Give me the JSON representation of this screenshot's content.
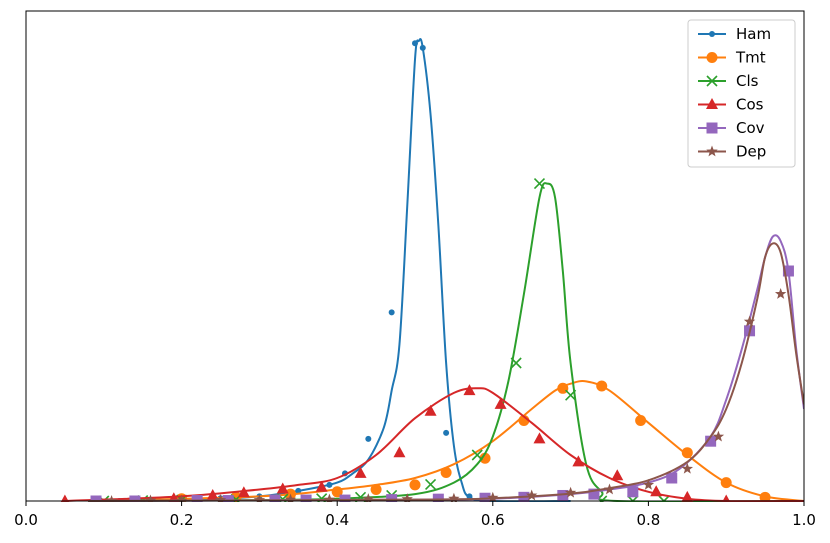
{
  "chart_data": {
    "type": "line",
    "title": "",
    "xlabel": "",
    "ylabel": "",
    "xlim": [
      0.0,
      1.0
    ],
    "ylim": [
      0.0,
      1.0
    ],
    "grid": false,
    "legend_position": "top-right",
    "x_ticks": [
      {
        "value": 0.0,
        "label": "0.0"
      },
      {
        "value": 0.2,
        "label": "0.2"
      },
      {
        "value": 0.4,
        "label": "0.4"
      },
      {
        "value": 0.6,
        "label": "0.6"
      },
      {
        "value": 0.8,
        "label": "0.8"
      },
      {
        "value": 1.0,
        "label": "1.0"
      }
    ],
    "series": [
      {
        "name": "Ham",
        "color": "#1f77b4",
        "marker": "dot",
        "x": [
          0.08,
          0.2,
          0.3,
          0.36,
          0.4,
          0.42,
          0.44,
          0.46,
          0.47,
          0.48,
          0.49,
          0.5,
          0.505,
          0.51,
          0.52,
          0.53,
          0.54,
          0.55,
          0.56,
          0.57,
          0.6,
          0.7
        ],
        "y": [
          0.0,
          0.002,
          0.01,
          0.025,
          0.04,
          0.06,
          0.09,
          0.16,
          0.24,
          0.34,
          0.64,
          0.96,
          1.0,
          0.985,
          0.84,
          0.6,
          0.3,
          0.12,
          0.04,
          0.008,
          0.0,
          0.0
        ],
        "markers": [
          [
            0.12,
            0.0
          ],
          [
            0.19,
            0.002
          ],
          [
            0.25,
            0.006
          ],
          [
            0.3,
            0.01
          ],
          [
            0.35,
            0.022
          ],
          [
            0.39,
            0.035
          ],
          [
            0.41,
            0.06
          ],
          [
            0.44,
            0.135
          ],
          [
            0.47,
            0.41
          ],
          [
            0.5,
            0.995
          ],
          [
            0.51,
            0.985
          ],
          [
            0.54,
            0.148
          ],
          [
            0.57,
            0.01
          ]
        ]
      },
      {
        "name": "Tmt",
        "color": "#ff7f0e",
        "marker": "circle",
        "x": [
          0.08,
          0.3,
          0.4,
          0.45,
          0.5,
          0.55,
          0.6,
          0.65,
          0.68,
          0.7,
          0.72,
          0.75,
          0.8,
          0.85,
          0.9,
          0.95,
          1.0
        ],
        "y": [
          0.0,
          0.01,
          0.025,
          0.035,
          0.05,
          0.08,
          0.13,
          0.2,
          0.24,
          0.255,
          0.26,
          0.24,
          0.17,
          0.1,
          0.04,
          0.01,
          0.0
        ],
        "markers": [
          [
            0.2,
            0.005
          ],
          [
            0.27,
            0.008
          ],
          [
            0.34,
            0.015
          ],
          [
            0.4,
            0.02
          ],
          [
            0.45,
            0.025
          ],
          [
            0.5,
            0.035
          ],
          [
            0.54,
            0.062
          ],
          [
            0.59,
            0.093
          ],
          [
            0.64,
            0.175
          ],
          [
            0.69,
            0.245
          ],
          [
            0.74,
            0.25
          ],
          [
            0.79,
            0.175
          ],
          [
            0.85,
            0.105
          ],
          [
            0.9,
            0.04
          ],
          [
            0.95,
            0.008
          ]
        ]
      },
      {
        "name": "Cls",
        "color": "#2ca02c",
        "marker": "x",
        "x": [
          0.08,
          0.3,
          0.4,
          0.5,
          0.55,
          0.58,
          0.6,
          0.62,
          0.64,
          0.66,
          0.67,
          0.68,
          0.69,
          0.7,
          0.72,
          0.74,
          0.76,
          1.0
        ],
        "y": [
          0.0,
          0.002,
          0.005,
          0.015,
          0.04,
          0.08,
          0.14,
          0.26,
          0.45,
          0.66,
          0.69,
          0.66,
          0.5,
          0.3,
          0.08,
          0.02,
          0.0,
          0.0
        ],
        "markers": [
          [
            0.1,
            0.0
          ],
          [
            0.15,
            0.001
          ],
          [
            0.2,
            0.002
          ],
          [
            0.27,
            0.003
          ],
          [
            0.33,
            0.004
          ],
          [
            0.38,
            0.005
          ],
          [
            0.43,
            0.008
          ],
          [
            0.47,
            0.012
          ],
          [
            0.52,
            0.036
          ],
          [
            0.58,
            0.1
          ],
          [
            0.63,
            0.3
          ],
          [
            0.66,
            0.69
          ],
          [
            0.7,
            0.23
          ],
          [
            0.74,
            0.0
          ],
          [
            0.78,
            0.0
          ],
          [
            0.82,
            0.0
          ]
        ]
      },
      {
        "name": "Cos",
        "color": "#d62728",
        "marker": "triangle",
        "x": [
          0.05,
          0.2,
          0.3,
          0.35,
          0.4,
          0.45,
          0.5,
          0.55,
          0.58,
          0.6,
          0.65,
          0.7,
          0.75,
          0.8,
          0.85,
          0.9,
          1.0
        ],
        "y": [
          0.0,
          0.01,
          0.025,
          0.035,
          0.05,
          0.1,
          0.18,
          0.235,
          0.245,
          0.235,
          0.17,
          0.1,
          0.05,
          0.02,
          0.005,
          0.0,
          0.0
        ],
        "markers": [
          [
            0.05,
            0.0
          ],
          [
            0.19,
            0.005
          ],
          [
            0.24,
            0.012
          ],
          [
            0.28,
            0.018
          ],
          [
            0.33,
            0.026
          ],
          [
            0.38,
            0.03
          ],
          [
            0.43,
            0.06
          ],
          [
            0.48,
            0.105
          ],
          [
            0.52,
            0.195
          ],
          [
            0.57,
            0.24
          ],
          [
            0.61,
            0.21
          ],
          [
            0.66,
            0.135
          ],
          [
            0.71,
            0.085
          ],
          [
            0.76,
            0.055
          ],
          [
            0.81,
            0.02
          ],
          [
            0.85,
            0.008
          ],
          [
            0.9,
            0.0
          ]
        ]
      },
      {
        "name": "Cov",
        "color": "#9467bd",
        "marker": "square",
        "x": [
          0.08,
          0.5,
          0.6,
          0.7,
          0.75,
          0.8,
          0.84,
          0.88,
          0.9,
          0.92,
          0.94,
          0.95,
          0.96,
          0.97,
          0.98,
          0.99,
          1.0
        ],
        "y": [
          0.0,
          0.003,
          0.005,
          0.015,
          0.025,
          0.04,
          0.07,
          0.14,
          0.22,
          0.33,
          0.46,
          0.53,
          0.575,
          0.565,
          0.5,
          0.33,
          0.2
        ],
        "markers": [
          [
            0.09,
            0.0
          ],
          [
            0.14,
            0.0
          ],
          [
            0.22,
            0.001
          ],
          [
            0.26,
            0.001
          ],
          [
            0.32,
            0.002
          ],
          [
            0.36,
            0.002
          ],
          [
            0.41,
            0.002
          ],
          [
            0.47,
            0.003
          ],
          [
            0.53,
            0.004
          ],
          [
            0.59,
            0.006
          ],
          [
            0.64,
            0.008
          ],
          [
            0.69,
            0.012
          ],
          [
            0.73,
            0.015
          ],
          [
            0.78,
            0.02
          ],
          [
            0.83,
            0.05
          ],
          [
            0.88,
            0.13
          ],
          [
            0.93,
            0.37
          ],
          [
            0.98,
            0.5
          ]
        ]
      },
      {
        "name": "Dep",
        "color": "#8c564b",
        "marker": "star",
        "x": [
          0.08,
          0.5,
          0.6,
          0.7,
          0.75,
          0.8,
          0.85,
          0.88,
          0.9,
          0.92,
          0.94,
          0.95,
          0.96,
          0.97,
          0.98,
          0.99,
          1.0
        ],
        "y": [
          0.0,
          0.003,
          0.006,
          0.016,
          0.028,
          0.045,
          0.085,
          0.14,
          0.2,
          0.3,
          0.44,
          0.53,
          0.56,
          0.54,
          0.45,
          0.32,
          0.21
        ],
        "markers": [
          [
            0.11,
            0.0
          ],
          [
            0.16,
            0.001
          ],
          [
            0.2,
            0.001
          ],
          [
            0.25,
            0.002
          ],
          [
            0.3,
            0.002
          ],
          [
            0.34,
            0.003
          ],
          [
            0.39,
            0.003
          ],
          [
            0.44,
            0.004
          ],
          [
            0.49,
            0.004
          ],
          [
            0.55,
            0.005
          ],
          [
            0.6,
            0.007
          ],
          [
            0.65,
            0.012
          ],
          [
            0.7,
            0.018
          ],
          [
            0.75,
            0.025
          ],
          [
            0.8,
            0.035
          ],
          [
            0.85,
            0.07
          ],
          [
            0.89,
            0.14
          ],
          [
            0.93,
            0.39
          ],
          [
            0.97,
            0.45
          ]
        ]
      }
    ]
  }
}
